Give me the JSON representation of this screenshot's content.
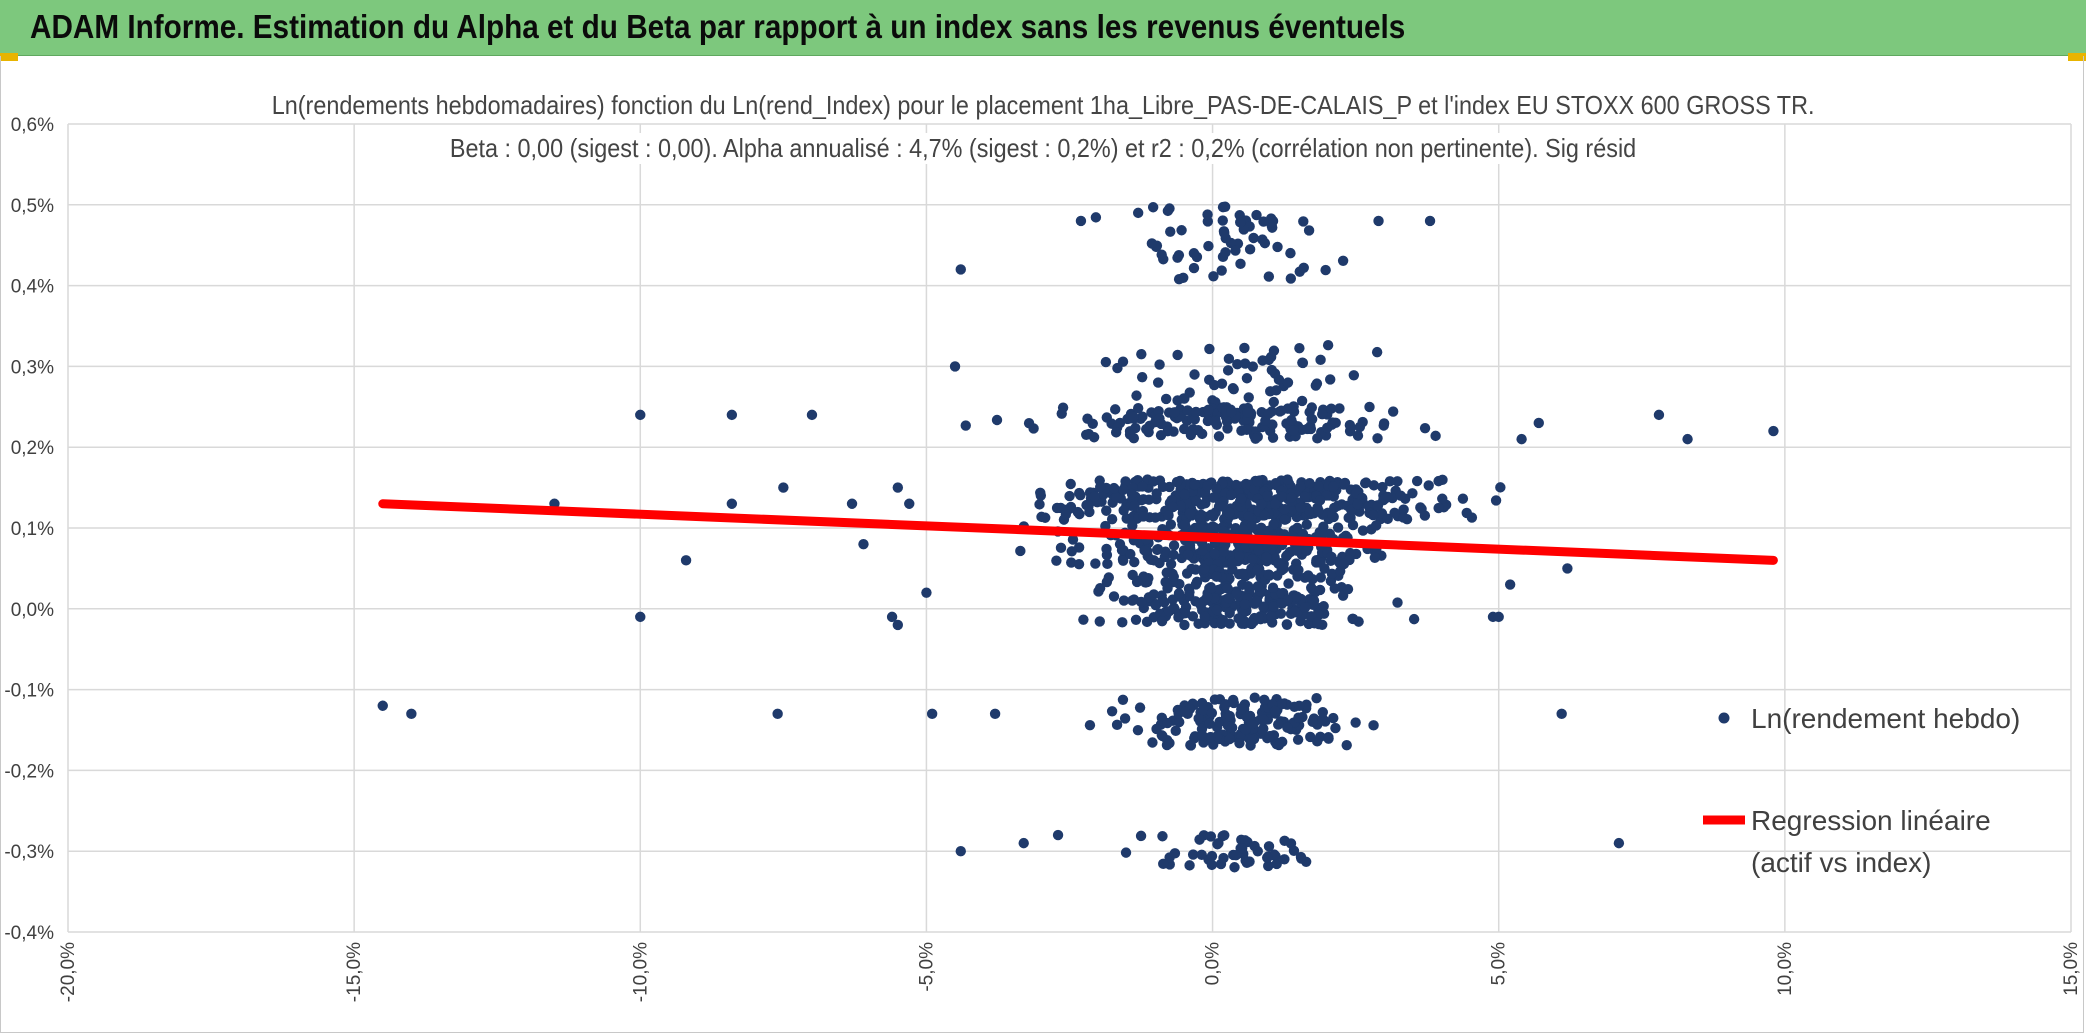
{
  "header": {
    "title": "ADAM Informe. Estimation du Alpha et du Beta par rapport à un index sans les revenus éventuels"
  },
  "colors": {
    "header_bg": "#7dc87d",
    "points": "#1f3a6b",
    "regression": "#ff0000",
    "grid": "#d9d9d9"
  },
  "chart_data": {
    "type": "scatter",
    "title_line1": "Ln(rendements hebdomadaires) fonction du Ln(rend_Index) pour le placement 1ha_Libre_PAS-DE-CALAIS_P et l'index EU STOXX 600 GROSS TR.",
    "title_line2": "Beta : 0,00 (sigest : 0,00). Alpha annualisé : 4,7% (sigest : 0,2%) et r2 : 0,2% (corrélation non pertinente). Sig résid",
    "xlim": [
      -20,
      15
    ],
    "ylim": [
      -0.4,
      0.6
    ],
    "x_ticks": [
      "-20,0%",
      "-15,0%",
      "-10,0%",
      "-5,0%",
      "0,0%",
      "5,0%",
      "10,0%",
      "15,0%"
    ],
    "y_ticks": [
      "0,6%",
      "0,5%",
      "0,4%",
      "0,3%",
      "0,2%",
      "0,1%",
      "0,0%",
      "-0,1%",
      "-0,2%",
      "-0,3%",
      "-0,4%"
    ],
    "grid": true,
    "legend_position": "right",
    "series": [
      {
        "name": "Ln(rendement hebdo)",
        "kind": "scatter",
        "clusters": [
          {
            "y_center": 0.45,
            "y_spread": 0.05,
            "x_mean": 0.3,
            "x_sd": 1.3,
            "count": 60
          },
          {
            "y_center": 0.28,
            "y_spread": 0.05,
            "x_mean": 0.4,
            "x_sd": 1.5,
            "count": 70
          },
          {
            "y_center": 0.23,
            "y_spread": 0.02,
            "x_mean": 0.4,
            "x_sd": 2.3,
            "count": 150
          },
          {
            "y_center": 0.135,
            "y_spread": 0.025,
            "x_mean": 0.5,
            "x_sd": 2.3,
            "count": 430
          },
          {
            "y_center": 0.08,
            "y_spread": 0.025,
            "x_mean": 0.4,
            "x_sd": 1.8,
            "count": 260
          },
          {
            "y_center": 0.015,
            "y_spread": 0.035,
            "x_mean": 0.4,
            "x_sd": 1.4,
            "count": 290
          },
          {
            "y_center": -0.14,
            "y_spread": 0.03,
            "x_mean": 0.5,
            "x_sd": 1.4,
            "count": 170
          },
          {
            "y_center": -0.3,
            "y_spread": 0.02,
            "x_mean": 0.4,
            "x_sd": 1.0,
            "count": 50
          }
        ],
        "outliers": [
          [
            -14.5,
            -0.12
          ],
          [
            -14.0,
            -0.13
          ],
          [
            -11.5,
            0.13
          ],
          [
            -10.0,
            0.24
          ],
          [
            -10.0,
            -0.01
          ],
          [
            -9.2,
            0.06
          ],
          [
            -8.4,
            0.24
          ],
          [
            -8.4,
            0.13
          ],
          [
            -7.6,
            -0.13
          ],
          [
            -7.5,
            0.15
          ],
          [
            -7.0,
            0.24
          ],
          [
            -6.3,
            0.13
          ],
          [
            -6.1,
            0.08
          ],
          [
            -5.6,
            -0.01
          ],
          [
            -5.5,
            -0.02
          ],
          [
            -5.5,
            0.15
          ],
          [
            -5.3,
            0.13
          ],
          [
            -5.0,
            0.02
          ],
          [
            -4.9,
            -0.13
          ],
          [
            -4.5,
            0.3
          ],
          [
            -4.4,
            0.42
          ],
          [
            -4.4,
            -0.3
          ],
          [
            -3.8,
            -0.13
          ],
          [
            -3.3,
            -0.29
          ],
          [
            -2.7,
            -0.28
          ],
          [
            4.9,
            -0.01
          ],
          [
            5.0,
            -0.01
          ],
          [
            5.2,
            0.03
          ],
          [
            5.4,
            0.21
          ],
          [
            5.7,
            0.23
          ],
          [
            6.2,
            0.05
          ],
          [
            6.1,
            -0.13
          ],
          [
            7.1,
            -0.29
          ],
          [
            7.8,
            0.24
          ],
          [
            8.3,
            0.21
          ],
          [
            9.8,
            0.22
          ],
          [
            3.8,
            0.48
          ],
          [
            2.9,
            0.48
          ],
          [
            -2.3,
            0.48
          ],
          [
            -1.3,
            0.49
          ]
        ]
      },
      {
        "name": "Regression linéaire (actif vs index)",
        "kind": "line",
        "points": [
          [
            -14.5,
            0.13
          ],
          [
            9.8,
            0.06
          ]
        ]
      }
    ],
    "legend": {
      "scatter_label": "Ln(rendement hebdo)",
      "line_label_1": "Regression linéaire",
      "line_label_2": "(actif vs index)"
    }
  }
}
